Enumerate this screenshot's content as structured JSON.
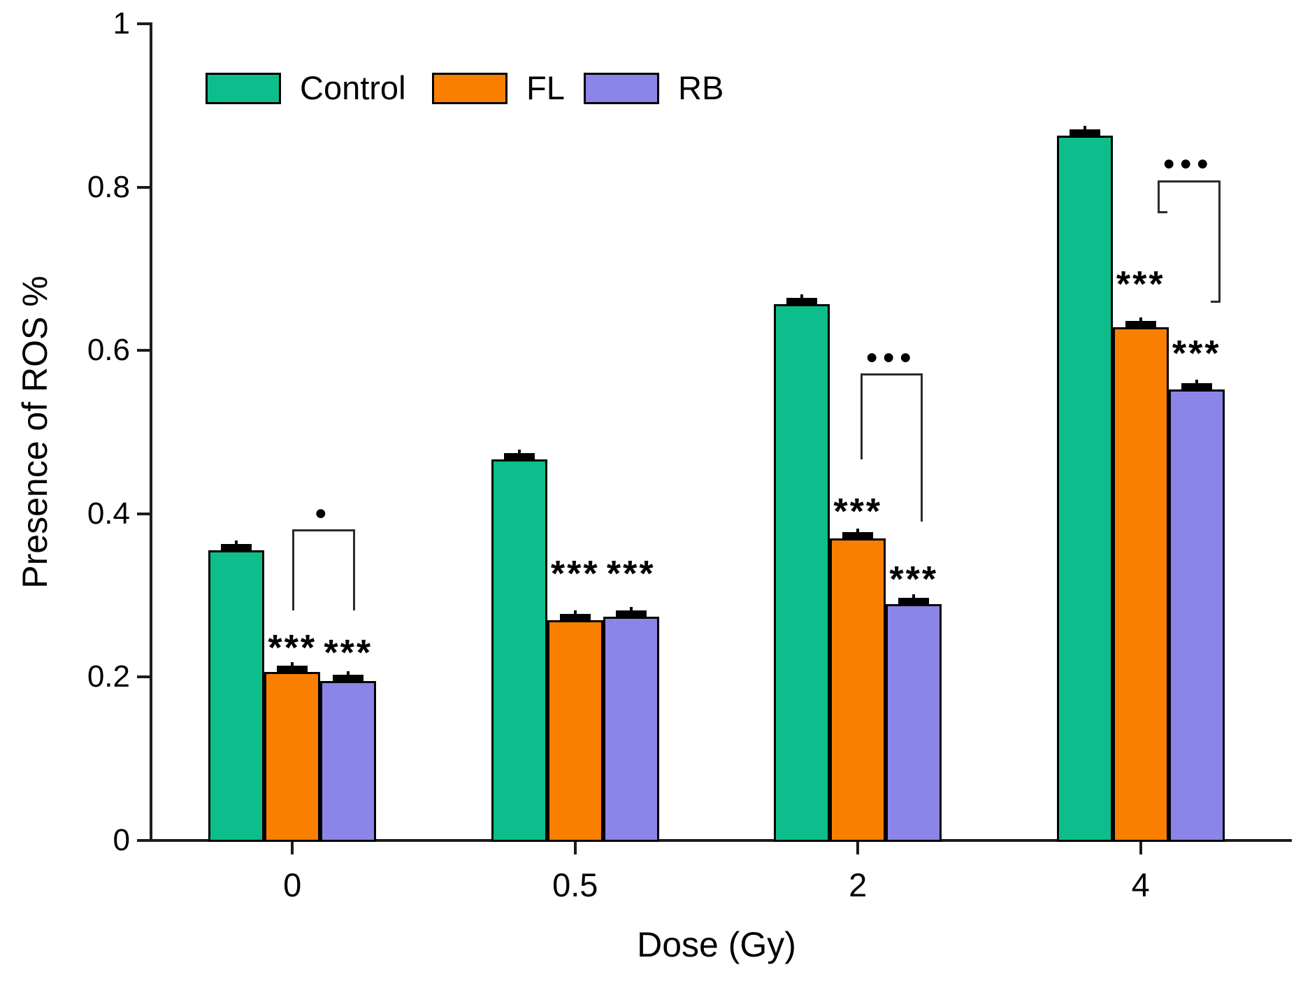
{
  "chart_data": {
    "type": "bar",
    "title": "",
    "xlabel": "Dose (Gy)",
    "ylabel": "Presence of ROS %",
    "categories": [
      "0",
      "0.5",
      "2",
      "4"
    ],
    "ylim": [
      0,
      1
    ],
    "grid": false,
    "legend_position": "top-left-inside",
    "y_ticks": [
      {
        "value": 0,
        "label": "0"
      },
      {
        "value": 0.2,
        "label": "0.2"
      },
      {
        "value": 0.4,
        "label": "0.4"
      },
      {
        "value": 0.6,
        "label": "0.6"
      },
      {
        "value": 0.8,
        "label": "0.8"
      },
      {
        "value": 1,
        "label": "1"
      }
    ],
    "series": [
      {
        "name": "Control",
        "color": "#0dbe8c",
        "values": [
          0.355,
          0.467,
          0.657,
          0.863
        ],
        "errors": [
          0.005,
          0.005,
          0.005,
          0.005
        ]
      },
      {
        "name": "FL",
        "color": "#fa7f00",
        "values": [
          0.206,
          0.27,
          0.37,
          0.628
        ],
        "errors": [
          0.005,
          0.005,
          0.005,
          0.005
        ]
      },
      {
        "name": "RB",
        "color": "#8b85e8",
        "values": [
          0.195,
          0.274,
          0.289,
          0.552
        ],
        "errors": [
          0.005,
          0.005,
          0.005,
          0.005
        ]
      }
    ],
    "significance": [
      {
        "category": "0",
        "stars": [
          {
            "series": "FL",
            "text": "***",
            "at_value": 0.243
          },
          {
            "series": "RB",
            "text": "***",
            "at_value": 0.237
          }
        ],
        "bracket": {
          "from": "FL",
          "to": "RB",
          "label": "●",
          "label_at_value": 0.401,
          "top_value": 0.381,
          "left_end_value": 0.282,
          "right_end_value": 0.282,
          "left_dx": 0,
          "right_dx": 7,
          "feet": false
        }
      },
      {
        "category": "0.5",
        "stars": [
          {
            "series": "FL",
            "text": "***",
            "at_value": 0.334
          },
          {
            "series": "RB",
            "text": "***",
            "at_value": 0.334
          }
        ],
        "bracket": null
      },
      {
        "category": "2",
        "stars": [
          {
            "series": "FL",
            "text": "***",
            "at_value": 0.41
          },
          {
            "series": "RB",
            "text": "***",
            "at_value": 0.327
          }
        ],
        "bracket": {
          "from": "FL",
          "to": "RB",
          "label": "●●●",
          "label_at_value": 0.592,
          "top_value": 0.572,
          "left_end_value": 0.467,
          "right_end_value": 0.39,
          "left_dx": 4,
          "right_dx": 10,
          "feet": false
        }
      },
      {
        "category": "4",
        "stars": [
          {
            "series": "FL",
            "text": "***",
            "at_value": 0.688
          },
          {
            "series": "RB",
            "text": "***",
            "at_value": 0.604
          }
        ],
        "bracket": {
          "from": "FL",
          "to": "RB",
          "label": "●●●",
          "label_at_value": 0.829,
          "top_value": 0.808,
          "left_end_value": 0.768,
          "right_end_value": 0.658,
          "left_dx": 24,
          "right_dx": 31,
          "feet": true
        }
      }
    ]
  }
}
